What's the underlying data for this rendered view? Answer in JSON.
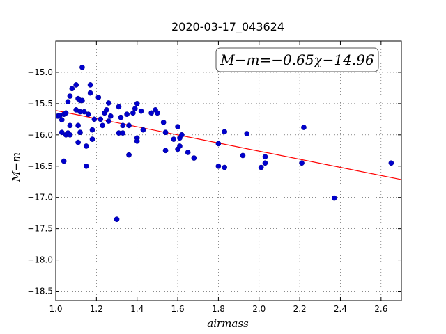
{
  "chart_data": {
    "type": "scatter",
    "title": "2020-03-17_043624",
    "xlabel": "airmass",
    "ylabel": "M−m",
    "xlim": [
      1.0,
      2.7
    ],
    "ylim": [
      -18.65,
      -14.5
    ],
    "ytick_values": [
      -15.0,
      -15.5,
      -16.0,
      -16.5,
      -17.0,
      -17.5,
      -18.0,
      -18.5
    ],
    "ytick_labels": [
      "−15.0",
      "−15.5",
      "−16.0",
      "−16.5",
      "−17.0",
      "−17.5",
      "−18.0",
      "−18.5"
    ],
    "xtick_values": [
      1.0,
      1.2,
      1.4,
      1.6,
      1.8,
      2.0,
      2.2,
      2.4,
      2.6
    ],
    "xtick_labels": [
      "1.0",
      "1.2",
      "1.4",
      "1.6",
      "1.8",
      "2.0",
      "2.2",
      "2.4",
      "2.6"
    ],
    "grid": true,
    "annotation": "M−m=−0.65χ−14.96",
    "annotation_placement": "top-right",
    "fit": {
      "slope": -0.65,
      "intercept": -14.96,
      "color": "#ff0000"
    },
    "point_color": "#0000cc",
    "points": [
      [
        1.01,
        -15.7
      ],
      [
        1.02,
        -15.69
      ],
      [
        1.03,
        -15.76
      ],
      [
        1.03,
        -15.96
      ],
      [
        1.04,
        -15.67
      ],
      [
        1.04,
        -16.42
      ],
      [
        1.05,
        -16.0
      ],
      [
        1.05,
        -15.65
      ],
      [
        1.06,
        -15.47
      ],
      [
        1.06,
        -15.97
      ],
      [
        1.07,
        -16.0
      ],
      [
        1.07,
        -15.85
      ],
      [
        1.07,
        -15.38
      ],
      [
        1.08,
        -15.26
      ],
      [
        1.1,
        -15.2
      ],
      [
        1.1,
        -15.6
      ],
      [
        1.11,
        -15.42
      ],
      [
        1.11,
        -16.12
      ],
      [
        1.11,
        -15.85
      ],
      [
        1.12,
        -15.96
      ],
      [
        1.12,
        -15.63
      ],
      [
        1.12,
        -15.45
      ],
      [
        1.13,
        -14.92
      ],
      [
        1.13,
        -15.45
      ],
      [
        1.14,
        -15.63
      ],
      [
        1.15,
        -16.18
      ],
      [
        1.15,
        -16.5
      ],
      [
        1.16,
        -15.67
      ],
      [
        1.17,
        -15.33
      ],
      [
        1.17,
        -15.2
      ],
      [
        1.18,
        -15.92
      ],
      [
        1.18,
        -16.07
      ],
      [
        1.19,
        -15.75
      ],
      [
        1.21,
        -15.4
      ],
      [
        1.22,
        -15.75
      ],
      [
        1.23,
        -15.85
      ],
      [
        1.24,
        -15.65
      ],
      [
        1.25,
        -15.6
      ],
      [
        1.26,
        -15.78
      ],
      [
        1.26,
        -15.49
      ],
      [
        1.27,
        -15.7
      ],
      [
        1.3,
        -17.35
      ],
      [
        1.31,
        -15.55
      ],
      [
        1.31,
        -15.97
      ],
      [
        1.32,
        -15.72
      ],
      [
        1.33,
        -15.85
      ],
      [
        1.33,
        -15.97
      ],
      [
        1.35,
        -15.67
      ],
      [
        1.36,
        -15.85
      ],
      [
        1.36,
        -16.32
      ],
      [
        1.38,
        -15.65
      ],
      [
        1.39,
        -15.58
      ],
      [
        1.4,
        -15.5
      ],
      [
        1.4,
        -16.05
      ],
      [
        1.4,
        -16.1
      ],
      [
        1.42,
        -15.62
      ],
      [
        1.43,
        -15.92
      ],
      [
        1.47,
        -15.65
      ],
      [
        1.49,
        -15.6
      ],
      [
        1.5,
        -15.65
      ],
      [
        1.53,
        -15.8
      ],
      [
        1.54,
        -15.96
      ],
      [
        1.54,
        -16.25
      ],
      [
        1.58,
        -16.07
      ],
      [
        1.6,
        -15.87
      ],
      [
        1.6,
        -16.23
      ],
      [
        1.61,
        -16.05
      ],
      [
        1.61,
        -16.18
      ],
      [
        1.62,
        -16.0
      ],
      [
        1.65,
        -16.28
      ],
      [
        1.68,
        -16.37
      ],
      [
        1.8,
        -16.14
      ],
      [
        1.8,
        -16.5
      ],
      [
        1.83,
        -15.95
      ],
      [
        1.83,
        -16.52
      ],
      [
        1.92,
        -16.33
      ],
      [
        1.94,
        -15.98
      ],
      [
        2.01,
        -16.52
      ],
      [
        2.03,
        -16.45
      ],
      [
        2.03,
        -16.35
      ],
      [
        2.21,
        -16.45
      ],
      [
        2.22,
        -15.88
      ],
      [
        2.37,
        -17.01
      ],
      [
        2.65,
        -16.45
      ]
    ]
  }
}
